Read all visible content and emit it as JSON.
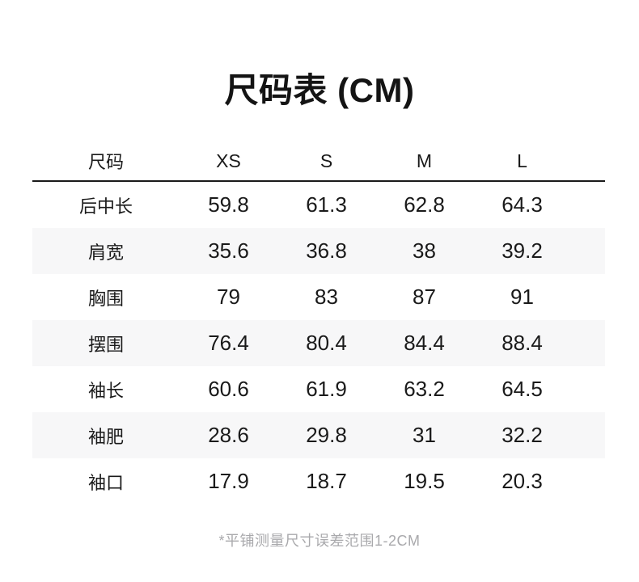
{
  "chart_data": {
    "type": "table",
    "title": "尺码表 (CM)",
    "columns": [
      "尺码",
      "XS",
      "S",
      "M",
      "L"
    ],
    "rows": [
      {
        "label": "后中长",
        "values": [
          "59.8",
          "61.3",
          "62.8",
          "64.3"
        ]
      },
      {
        "label": "肩宽",
        "values": [
          "35.6",
          "36.8",
          "38",
          "39.2"
        ]
      },
      {
        "label": "胸围",
        "values": [
          "79",
          "83",
          "87",
          "91"
        ]
      },
      {
        "label": "摆围",
        "values": [
          "76.4",
          "80.4",
          "84.4",
          "88.4"
        ]
      },
      {
        "label": "袖长",
        "values": [
          "60.6",
          "61.9",
          "63.2",
          "64.5"
        ]
      },
      {
        "label": "袖肥",
        "values": [
          "28.6",
          "29.8",
          "31",
          "32.2"
        ]
      },
      {
        "label": "袖口",
        "values": [
          "17.9",
          "18.7",
          "19.5",
          "20.3"
        ]
      }
    ],
    "footnote": "*平铺测量尺寸误差范围1-2CM",
    "layout": {
      "stripe_rows": [
        1,
        3,
        5
      ],
      "stripe_color": "#f7f7f8",
      "header_rule_color": "#1a1a1a",
      "text_color": "#1a1a1a",
      "footnote_color": "#a9a9ac"
    }
  }
}
